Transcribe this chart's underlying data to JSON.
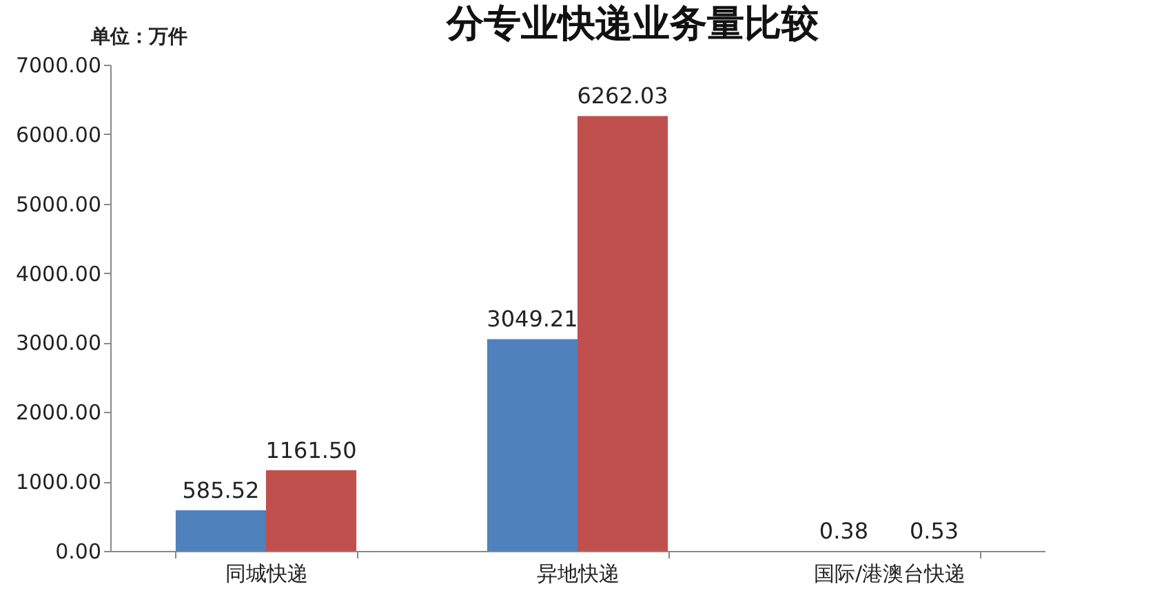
{
  "chart_data": {
    "type": "bar",
    "title": "分专业快递业务量比较",
    "annotations": [
      "单位：万件"
    ],
    "categories": [
      "同城快递",
      "异地快递",
      "国际/港澳台快递"
    ],
    "series": [
      {
        "color": "#4f81bd",
        "values": [
          585.52,
          3049.21,
          0.38
        ],
        "value_labels": [
          "585.52",
          "3049.21",
          "0.38"
        ]
      },
      {
        "color": "#c0504d",
        "values": [
          1161.5,
          6262.03,
          0.53
        ],
        "value_labels": [
          "1161.50",
          "6262.03",
          "0.53"
        ]
      }
    ],
    "ylim": [
      0,
      7000
    ],
    "yticks": [
      {
        "value": 0,
        "label": "0.00"
      },
      {
        "value": 1000,
        "label": "1000.00"
      },
      {
        "value": 2000,
        "label": "2000.00"
      },
      {
        "value": 3000,
        "label": "3000.00"
      },
      {
        "value": 4000,
        "label": "4000.00"
      },
      {
        "value": 5000,
        "label": "5000.00"
      },
      {
        "value": 6000,
        "label": "6000.00"
      },
      {
        "value": 7000,
        "label": "7000.00"
      }
    ],
    "grid": false,
    "legend": false
  }
}
